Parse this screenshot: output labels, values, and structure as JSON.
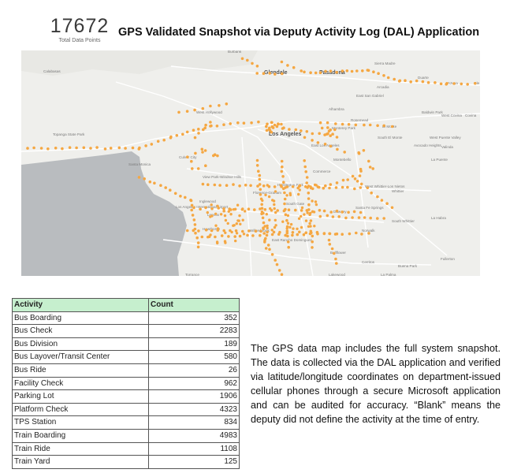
{
  "kpi": {
    "value": "17672",
    "label": "Total Data Points"
  },
  "title": "GPS Validated Snapshot via Deputy Activity Log (DAL) Application",
  "map": {
    "point_color": "#f5a742",
    "water_color": "#b9bcbf",
    "land_color": "#efefec",
    "labels": {
      "calabasas": "Calabasas",
      "burbank": "Burbank",
      "glendale": "Glendale",
      "pasadena": "Pasadena",
      "sierra_madre": "Sierra Madre",
      "arcadia": "Arcadia",
      "duarte": "Duarte",
      "azusa": "Azusa",
      "glendora": "Gle",
      "west_hollywood": "West Hollywood",
      "alhambra": "Alhambra",
      "east_san_gabriel": "East San Gabriel",
      "rosemead": "Rosemead",
      "el_monte": "El Monte",
      "baldwin_park": "Baldwin Park",
      "west_covina": "West Covina",
      "covina": "Covina",
      "topanga": "Topanga State Park",
      "los_angeles": "Los Angeles",
      "monterey_park": "Monterey Park",
      "south_el_monte": "South El Monte",
      "west_puente": "West Puente Valley",
      "avocado": "Avocado Heights",
      "valinda": "Valinda",
      "la_puente": "La Puente",
      "santa_monica": "Santa Monica",
      "culver_city": "Culver City",
      "east_la": "East Los Angeles",
      "montebello": "Montebello",
      "view_park": "View Park-Windsor Hills",
      "huntington_park": "Huntington Park",
      "commerce": "Commerce",
      "west_whittier": "West Whittier-Los Nietos",
      "whittier": "Whittier",
      "lax": "Los Angeles International Airport",
      "inglewood": "Inglewood",
      "lennox": "Lennox",
      "florence": "Florence-Graham",
      "south_gate": "South Gate",
      "downey": "Downey",
      "santa_fe": "Santa Fe Springs",
      "la_habra": "La Habra",
      "hawthorne": "Hawthorne",
      "willowbrook": "Willowbrook",
      "norwalk": "Norwalk",
      "south_whittier": "South Whittier",
      "east_rancho": "East Rancho Dominguez",
      "bellflower": "Bellflower",
      "cerritos": "Cerritos",
      "buena_park": "Buena Park",
      "fullerton": "Fullerton",
      "torrance": "Torrance",
      "lakewood": "Lakewood",
      "la_palma": "La Palma"
    }
  },
  "table": {
    "headers": {
      "activity": "Activity",
      "count": "Count"
    },
    "rows": [
      {
        "activity": "Bus Boarding",
        "count": "352"
      },
      {
        "activity": "Bus Check",
        "count": "2283"
      },
      {
        "activity": "Bus Division",
        "count": "189"
      },
      {
        "activity": "Bus Layover/Transit Center",
        "count": "580"
      },
      {
        "activity": "Bus Ride",
        "count": "26"
      },
      {
        "activity": "Facility Check",
        "count": "962"
      },
      {
        "activity": "Parking Lot",
        "count": "1906"
      },
      {
        "activity": "Platform Check",
        "count": "4323"
      },
      {
        "activity": "TPS Station",
        "count": "834"
      },
      {
        "activity": "Train Boarding",
        "count": "4983"
      },
      {
        "activity": "Train Ride",
        "count": "1108"
      },
      {
        "activity": "Train Yard",
        "count": "125"
      }
    ]
  },
  "description": "The GPS data map includes the full system snapshot. The data is collected via the DAL application and verified via latitude/longitude coordinates on department-issued cellular phones through a secure Microsoft application and can be audited for accuracy. “Blank” means the deputy did not define the activity at the time of entry."
}
